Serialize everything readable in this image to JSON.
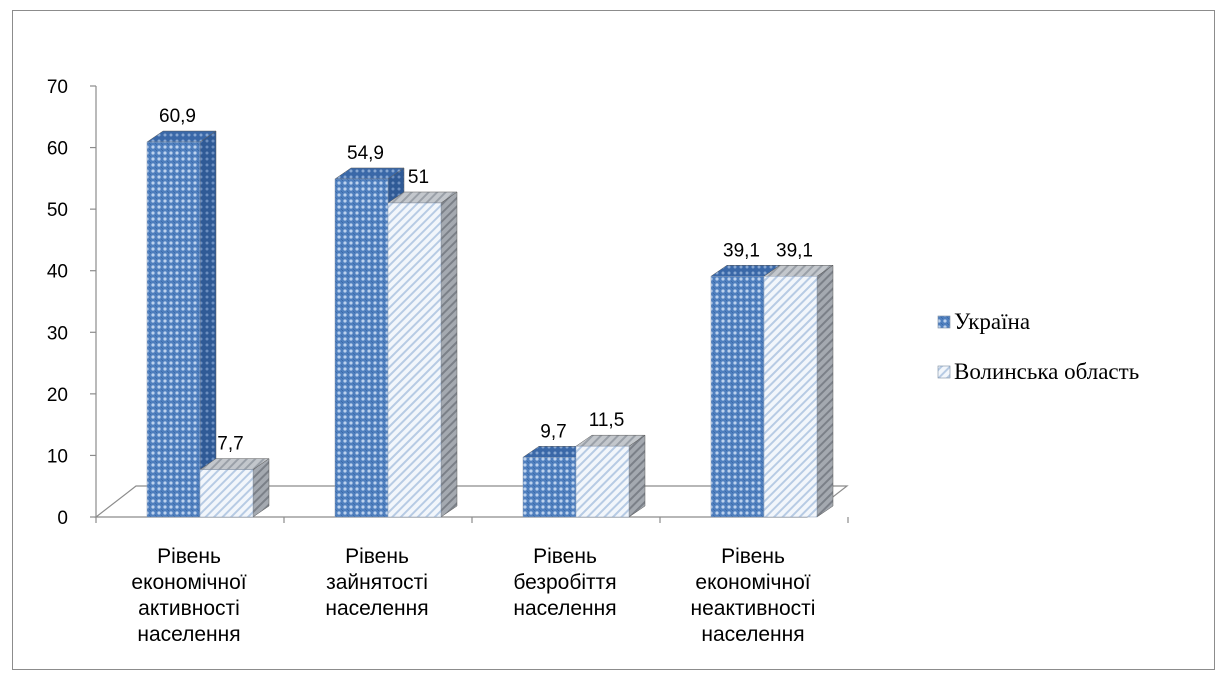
{
  "chart_data": {
    "type": "bar",
    "categories": [
      [
        "Рівень",
        "економічної",
        "активності",
        "населення"
      ],
      [
        "Рівень",
        "зайнятості",
        "населення"
      ],
      [
        "Рівень",
        "безробіття",
        "населення"
      ],
      [
        "Рівень",
        "економічної",
        "неактивності",
        "населення"
      ]
    ],
    "series": [
      {
        "name": "Україна",
        "values": [
          60.9,
          54.9,
          9.7,
          39.1
        ],
        "labels": [
          "60,9",
          "54,9",
          "9,7",
          "39,1"
        ],
        "color": "#4f7fbe"
      },
      {
        "name": "Волинська область",
        "values": [
          7.7,
          51,
          11.5,
          39.1
        ],
        "labels": [
          "7,7",
          "51",
          "11,5",
          "39,1"
        ],
        "color": "#c6d9ef"
      }
    ],
    "yticks": [
      "0",
      "10",
      "20",
      "30",
      "40",
      "50",
      "60",
      "70"
    ],
    "ylim": [
      0,
      70
    ],
    "legend_position": "right",
    "grid": false,
    "three_d": true
  }
}
